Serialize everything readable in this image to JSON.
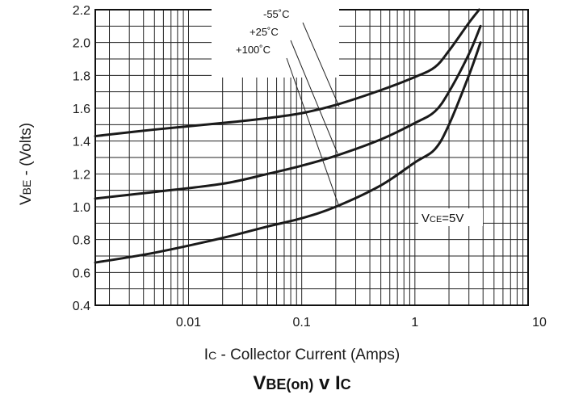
{
  "chart_data": {
    "type": "line",
    "title": "VBE(on) v IC",
    "title_parts": {
      "t1": "V",
      "t2": "BE(on)",
      "t3": " v ",
      "t4": "I",
      "t5": "C"
    },
    "xlabel": "IC - Collector Current (Amps)",
    "xlabel_parts": {
      "a": "I",
      "b": "C",
      "c": " - Collector Current (Amps)"
    },
    "ylabel": "VBE - (Volts)",
    "ylabel_parts": {
      "a": "V",
      "b": "BE",
      "c": " - (Volts)"
    },
    "x_scale": "log",
    "xlim": [
      0.0015,
      10
    ],
    "ylim": [
      0.4,
      2.2
    ],
    "grid": true,
    "x_ticks": [
      {
        "value": 0.01,
        "label": "0.01"
      },
      {
        "value": 0.1,
        "label": "0.1"
      },
      {
        "value": 1,
        "label": "1"
      },
      {
        "value": 10,
        "label": "10"
      }
    ],
    "y_ticks": [
      {
        "value": 0.4,
        "label": "0.4"
      },
      {
        "value": 0.6,
        "label": "0.6"
      },
      {
        "value": 0.8,
        "label": "0.8"
      },
      {
        "value": 1.0,
        "label": "1.0"
      },
      {
        "value": 1.2,
        "label": "1.2"
      },
      {
        "value": 1.4,
        "label": "1.4"
      },
      {
        "value": 1.6,
        "label": "1.6"
      },
      {
        "value": 1.8,
        "label": "1.8"
      },
      {
        "value": 2.0,
        "label": "2.0"
      },
      {
        "value": 2.2,
        "label": "2.2"
      }
    ],
    "series": [
      {
        "name": "-55°C",
        "x": [
          0.0015,
          0.005,
          0.02,
          0.05,
          0.1,
          0.2,
          0.5,
          1,
          1.5,
          2,
          3,
          3.7
        ],
        "y": [
          1.43,
          1.47,
          1.51,
          1.54,
          1.57,
          1.62,
          1.71,
          1.79,
          1.85,
          1.95,
          2.12,
          2.2
        ]
      },
      {
        "name": "+25°C",
        "x": [
          0.0015,
          0.005,
          0.02,
          0.05,
          0.1,
          0.2,
          0.5,
          1,
          1.5,
          2,
          3,
          3.8
        ],
        "y": [
          1.05,
          1.09,
          1.14,
          1.2,
          1.25,
          1.31,
          1.41,
          1.51,
          1.58,
          1.7,
          1.93,
          2.1
        ]
      },
      {
        "name": "+100°C",
        "x": [
          0.0015,
          0.005,
          0.02,
          0.05,
          0.1,
          0.2,
          0.5,
          1,
          1.5,
          2,
          3,
          3.8
        ],
        "y": [
          0.66,
          0.72,
          0.81,
          0.88,
          0.93,
          1.0,
          1.13,
          1.27,
          1.35,
          1.5,
          1.8,
          2.0
        ]
      }
    ],
    "annotations": [
      {
        "text": "-55˚C",
        "series": 0
      },
      {
        "text": "+25˚C",
        "series": 1
      },
      {
        "text": "+100˚C",
        "series": 2
      },
      {
        "text": "VCE=5V",
        "parts": {
          "a": "V",
          "b": "CE",
          "c": "=5V"
        }
      }
    ]
  }
}
